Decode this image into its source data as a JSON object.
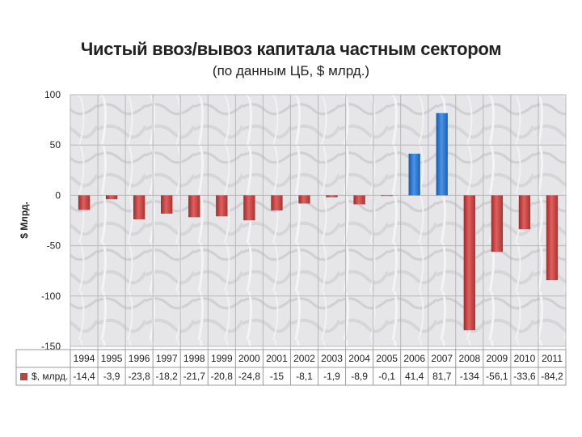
{
  "title": "Чистый ввоз/вывоз капитала частным сектором",
  "subtitle": "(по данным ЦБ, $ млрд.)",
  "chart_data": {
    "type": "bar",
    "ylabel": "$ Млрд.",
    "ylim": [
      -150,
      100
    ],
    "yticks": [
      100,
      50,
      0,
      -50,
      -100,
      -150
    ],
    "grid": true,
    "categories": [
      "1994",
      "1995",
      "1996",
      "1997",
      "1998",
      "1999",
      "2000",
      "2001",
      "2002",
      "2003",
      "2004",
      "2005",
      "2006",
      "2007",
      "2008",
      "2009",
      "2010",
      "2011"
    ],
    "series": [
      {
        "name": "$, млрд.",
        "values": [
          -14.4,
          -3.9,
          -23.8,
          -18.2,
          -21.7,
          -20.8,
          -24.8,
          -15,
          -8.1,
          -1.9,
          -8.9,
          -0.1,
          41.4,
          81.7,
          -134,
          -56.1,
          -33.6,
          -84.2
        ],
        "labels": [
          "-14,4",
          "-3,9",
          "-23,8",
          "-18,2",
          "-21,7",
          "-20,8",
          "-24,8",
          "-15",
          "-8,1",
          "-1,9",
          "-8,9",
          "-0,1",
          "41,4",
          "81,7",
          "-134",
          "-56,1",
          "-33,6",
          "-84,2"
        ]
      }
    ],
    "colors": {
      "negative": "#c0403f",
      "positive": "#1f6fd0",
      "grid": "#b8b8b8"
    }
  }
}
